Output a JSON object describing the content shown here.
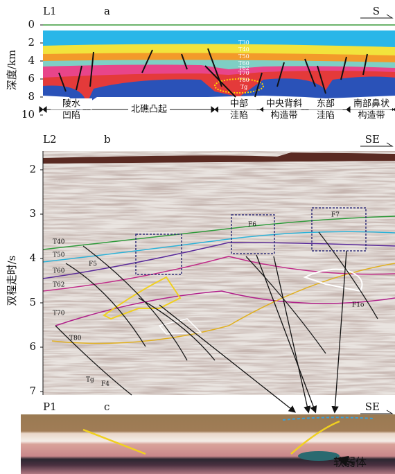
{
  "panel_a": {
    "label": "L1",
    "letter": "a",
    "direction": "S",
    "axis_title": "深度/km",
    "ticks": [
      0,
      2,
      4,
      6,
      8,
      10
    ],
    "horizons": [
      "T30",
      "T40",
      "T50",
      "T60",
      "T62",
      "T70",
      "T80",
      "Tg"
    ],
    "zones": [
      [
        "陵水",
        "凹陷"
      ],
      [
        "北礁凸起"
      ],
      [
        "中部",
        "洼陷"
      ],
      [
        "中央背斜",
        "构造带"
      ],
      [
        "东部",
        "洼陷"
      ],
      [
        "南部鼻状",
        "构造带"
      ]
    ]
  },
  "panel_b": {
    "label": "L2",
    "letter": "b",
    "direction": "SE",
    "axis_title": "双程走时/s",
    "ticks": [
      2,
      3,
      4,
      5,
      6,
      7
    ],
    "labels": [
      "T40",
      "T50",
      "T60",
      "T62",
      "T70",
      "T80",
      "Tg",
      "F4",
      "F5",
      "F6",
      "F7",
      "F1o"
    ]
  },
  "panel_c": {
    "label": "P1",
    "letter": "c",
    "direction": "SE",
    "annotation": "软弱体"
  }
}
